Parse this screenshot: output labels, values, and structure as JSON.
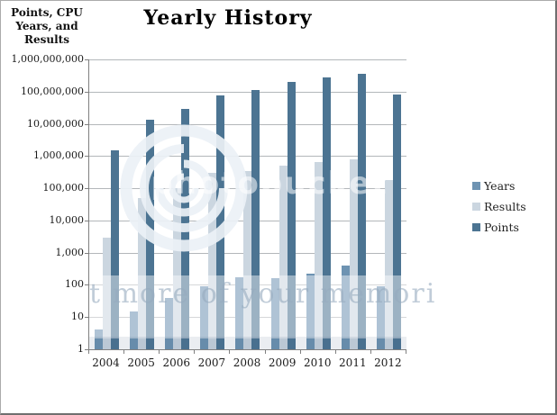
{
  "title": "Yearly History",
  "axis_header": {
    "line1": "Points, CPU",
    "line2": "Years, and",
    "line3": "Results"
  },
  "watermark": {
    "brand": "photobucket",
    "phrase": "t more of your memori"
  },
  "chart_data": {
    "type": "bar",
    "scale": "log10",
    "title": "Yearly History",
    "ylabel": "Points, CPU Years, and Results",
    "xlabel": "",
    "ylim": [
      1,
      1000000000
    ],
    "grid": true,
    "legend_position": "right",
    "ytick_labels_top_to_bottom": [
      "1,000,000,000",
      "100,000,000",
      "10,000,000",
      "1,000,000",
      "100,000",
      "10,000",
      "1,000",
      "100",
      "10",
      "1"
    ],
    "categories": [
      "2004",
      "2005",
      "2006",
      "2007",
      "2008",
      "2009",
      "2010",
      "2011",
      "2012"
    ],
    "series": [
      {
        "name": "Years",
        "color": "#6E93B2",
        "values": [
          4,
          15,
          40,
          90,
          170,
          160,
          225,
          400,
          90
        ]
      },
      {
        "name": "Results",
        "color": "#CBD6E0",
        "values": [
          3000,
          50000,
          100000,
          300000,
          350000,
          500000,
          650000,
          800000,
          180000
        ]
      },
      {
        "name": "Points",
        "color": "#4C7492",
        "values": [
          1500000,
          13000000,
          30000000,
          75000000,
          110000000,
          200000000,
          280000000,
          360000000,
          80000000
        ]
      }
    ]
  }
}
